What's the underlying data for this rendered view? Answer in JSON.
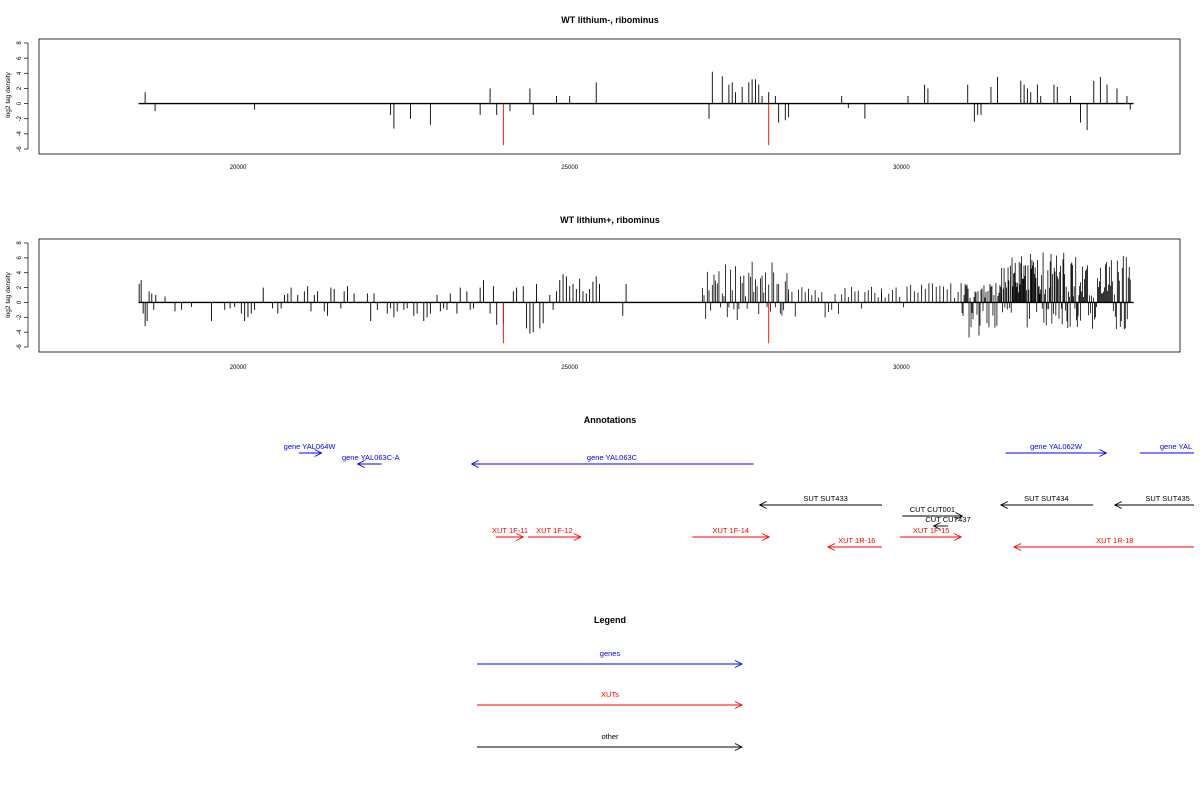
{
  "chart_data": [
    {
      "type": "bar",
      "title": "WT lithium-, ribominus",
      "xlabel": "",
      "ylabel": "log2 tag density",
      "xlim": [
        17000,
        34200
      ],
      "ylim": [
        -6,
        8
      ],
      "xticks": [
        20000,
        25000,
        30000
      ],
      "yticks": [
        -6,
        -4,
        -2,
        0,
        2,
        4,
        6,
        8
      ],
      "baseline": [
        18500,
        33500
      ],
      "series": [
        {
          "color": "#000000",
          "x": [
            18600,
            18750,
            20250,
            22300,
            22350,
            22600,
            22900,
            23650,
            23800,
            23900,
            24100,
            24400,
            24450,
            24800,
            25000,
            25400,
            27100,
            27150,
            27300,
            27400,
            27450,
            27500,
            27600,
            27700,
            27750,
            27800,
            27850,
            27900,
            28000,
            28100,
            28150,
            28250,
            28300,
            29100,
            29200,
            29450,
            30100,
            30350,
            30400,
            31000,
            31100,
            31150,
            31200,
            31350,
            31450,
            31800,
            31850,
            31900,
            31950,
            32050,
            32100,
            32300,
            32350,
            32550,
            32700,
            32800,
            32900,
            33000,
            33100,
            33250,
            33400,
            33450
          ],
          "values": [
            1.5,
            -1,
            -0.8,
            -1.5,
            -3.3,
            -2,
            -2.8,
            -1.5,
            2,
            -1.5,
            -1,
            2,
            -1.5,
            1,
            1,
            2.8,
            -2,
            4.2,
            3.6,
            2.5,
            2.8,
            1.5,
            2.2,
            2.8,
            3.2,
            3.2,
            2.5,
            1,
            1.5,
            1,
            -2.5,
            -2.2,
            -1.8,
            1,
            -0.6,
            -2,
            1,
            2.5,
            2,
            2.5,
            -2.4,
            -1.5,
            -1.5,
            2.2,
            3.5,
            3,
            2.5,
            2,
            1.5,
            2.5,
            1,
            2.5,
            2.2,
            1,
            -2.5,
            -3.5,
            3,
            3.5,
            2.5,
            2,
            1,
            -0.8
          ]
        },
        {
          "color": "#ff0000",
          "x": [
            24000,
            28000
          ],
          "values": [
            -5.5,
            -5.5
          ]
        }
      ]
    },
    {
      "type": "bar",
      "title": "WT lithium+, ribominus",
      "xlabel": "",
      "ylabel": "log2 tag density",
      "xlim": [
        17000,
        34200
      ],
      "ylim": [
        -6,
        8
      ],
      "xticks": [
        20000,
        25000,
        30000
      ],
      "yticks": [
        -6,
        -4,
        -2,
        0,
        2,
        4,
        6,
        8
      ],
      "baseline": [
        18500,
        33500
      ],
      "series": [
        {
          "color": "#000000",
          "x": [
            18510,
            18540,
            18570,
            18600,
            18630,
            18660,
            18700,
            18730,
            18760,
            18900,
            19050,
            19150,
            19300,
            19600,
            19800,
            19880,
            19950,
            20050,
            20100,
            20150,
            20200,
            20250,
            20380,
            20520,
            20600,
            20650,
            20700,
            20750,
            20800,
            20900,
            21000,
            21050,
            21100,
            21150,
            21200,
            21300,
            21350,
            21400,
            21450,
            21550,
            21600,
            21650,
            21750,
            21950,
            22000,
            22050,
            22100,
            22250,
            22300,
            22350,
            22400,
            22500,
            22550,
            22650,
            22700,
            22800,
            22850,
            22900,
            23000,
            23050,
            23100,
            23150,
            23200,
            23300,
            23350,
            23450,
            23500,
            23550,
            23650,
            23700,
            23800,
            23850,
            23900,
            24000,
            24150,
            24200,
            24300,
            24350,
            24400,
            24450,
            24500,
            24550,
            24600,
            24700,
            24750,
            24800,
            24850,
            24900,
            24950,
            25000,
            25050,
            25100,
            25150,
            25200,
            25250,
            25300,
            25350,
            25400,
            25450,
            25800,
            25850
          ],
          "values": [
            2.5,
            3,
            -1.5,
            -3.2,
            -2.5,
            1.5,
            1.2,
            -1,
            1,
            0.8,
            -1.2,
            -1,
            -0.6,
            -2.5,
            -1,
            -0.8,
            -0.6,
            -1.5,
            -2.5,
            -2,
            -1.5,
            -1,
            2,
            -0.8,
            -1.5,
            -0.8,
            1,
            1.2,
            2,
            1,
            1.5,
            2.2,
            -1.2,
            1,
            1.5,
            -1.2,
            -1.8,
            2,
            1.8,
            -0.8,
            1.5,
            2.2,
            1.2,
            1.2,
            -2.5,
            1.2,
            -1,
            -1.5,
            -0.8,
            -2,
            -1.2,
            -1,
            -0.8,
            -1.8,
            -1.5,
            -2.5,
            -2,
            -1.5,
            1,
            -1.2,
            -0.8,
            -1,
            1.2,
            -1.5,
            2,
            1.5,
            -1,
            -0.8,
            2,
            3,
            -1.5,
            2.2,
            -3,
            -2.8,
            1.5,
            2,
            2.2,
            -3.5,
            -4.2,
            -4,
            2.5,
            -3.5,
            -2.8,
            1,
            -1,
            1.5,
            3,
            3.8,
            3.5,
            2.2,
            2.5,
            1.8,
            3.2,
            1.5,
            1.2,
            1.8,
            2.8,
            3.5,
            2.5,
            -1.8,
            2.5
          ]
        },
        {
          "color": "#000000",
          "cluster": true,
          "segments": [
            {
              "from": 27000,
              "to": 28300,
              "step": 25,
              "up": 5.5,
              "down": -2.5,
              "seed": 11
            },
            {
              "from": 28300,
              "to": 29700,
              "step": 50,
              "up": 2.2,
              "down": -2.2,
              "seed": 23
            },
            {
              "from": 29700,
              "to": 30900,
              "step": 55,
              "up": 2.6,
              "down": -1.2,
              "seed": 37
            },
            {
              "from": 30900,
              "to": 31500,
              "step": 15,
              "up": 2.6,
              "down": -5,
              "seed": 41
            },
            {
              "from": 31500,
              "to": 32700,
              "step": 12,
              "up": 7,
              "down": -3.5,
              "seed": 53
            },
            {
              "from": 32700,
              "to": 33450,
              "step": 15,
              "up": 6.5,
              "down": -4,
              "seed": 67
            }
          ]
        },
        {
          "color": "#ff0000",
          "x": [
            24000,
            28000
          ],
          "values": [
            -5.5,
            -5.5
          ]
        }
      ]
    }
  ],
  "annotations": {
    "title": "Annotations",
    "features": [
      {
        "label": "gene YAL064W",
        "color": "#0000ff",
        "from": 0.249,
        "to": 0.268,
        "row": 0,
        "dir": "right",
        "labelAt": 0.258
      },
      {
        "label": "gene YAL063C-A",
        "color": "#0000ff",
        "from": 0.298,
        "to": 0.318,
        "row": 1,
        "dir": "left",
        "labelAt": 0.309
      },
      {
        "label": "gene YAL063C",
        "color": "#0000ff",
        "from": 0.393,
        "to": 0.628,
        "row": 1,
        "dir": "left",
        "labelAt": 0.51
      },
      {
        "label": "gene YAL062W",
        "color": "#0000ff",
        "from": 0.838,
        "to": 0.922,
        "row": 0,
        "dir": "right",
        "labelAt": 0.88
      },
      {
        "label": "gene YAL",
        "color": "#0000ff",
        "from": 0.95,
        "to": 0.995,
        "row": 0,
        "dir": "none",
        "labelAt": 0.98
      },
      {
        "label": "SUT SUT433",
        "color": "#000000",
        "from": 0.633,
        "to": 0.735,
        "row": 4,
        "dir": "left",
        "labelAt": 0.688
      },
      {
        "label": "SUT SUT434",
        "color": "#000000",
        "from": 0.834,
        "to": 0.911,
        "row": 4,
        "dir": "left",
        "labelAt": 0.872
      },
      {
        "label": "SUT SUT435",
        "color": "#000000",
        "from": 0.929,
        "to": 0.995,
        "row": 4,
        "dir": "left",
        "labelAt": 0.973
      },
      {
        "label": "CUT CUT001",
        "color": "#000000",
        "from": 0.752,
        "to": 0.802,
        "row": 5,
        "dir": "right",
        "labelAt": 0.777
      },
      {
        "label": "CUT CUT437",
        "color": "#000000",
        "from": 0.778,
        "to": 0.79,
        "row": 6,
        "dir": "left",
        "labelAt": 0.79
      },
      {
        "label": "XUT 1F-11",
        "color": "#ff0000",
        "from": 0.413,
        "to": 0.436,
        "row": 7,
        "dir": "right",
        "labelAt": 0.425
      },
      {
        "label": "XUT 1F-12",
        "color": "#ff0000",
        "from": 0.44,
        "to": 0.484,
        "row": 7,
        "dir": "right",
        "labelAt": 0.462
      },
      {
        "label": "XUT 1F-14",
        "color": "#ff0000",
        "from": 0.577,
        "to": 0.641,
        "row": 7,
        "dir": "right",
        "labelAt": 0.609
      },
      {
        "label": "XUT 1F-15",
        "color": "#ff0000",
        "from": 0.75,
        "to": 0.801,
        "row": 7,
        "dir": "right",
        "labelAt": 0.776
      },
      {
        "label": "XUT 1R-16",
        "color": "#ff0000",
        "from": 0.69,
        "to": 0.735,
        "row": 8,
        "dir": "left",
        "labelAt": 0.714
      },
      {
        "label": "XUT 1R-18",
        "color": "#ff0000",
        "from": 0.845,
        "to": 0.995,
        "row": 8,
        "dir": "left",
        "labelAt": 0.929
      }
    ]
  },
  "legend": {
    "title": "Legend",
    "items": [
      {
        "label": "genes",
        "color": "#0000ff"
      },
      {
        "label": "XUTs",
        "color": "#ff0000"
      },
      {
        "label": "other",
        "color": "#000000"
      }
    ]
  }
}
